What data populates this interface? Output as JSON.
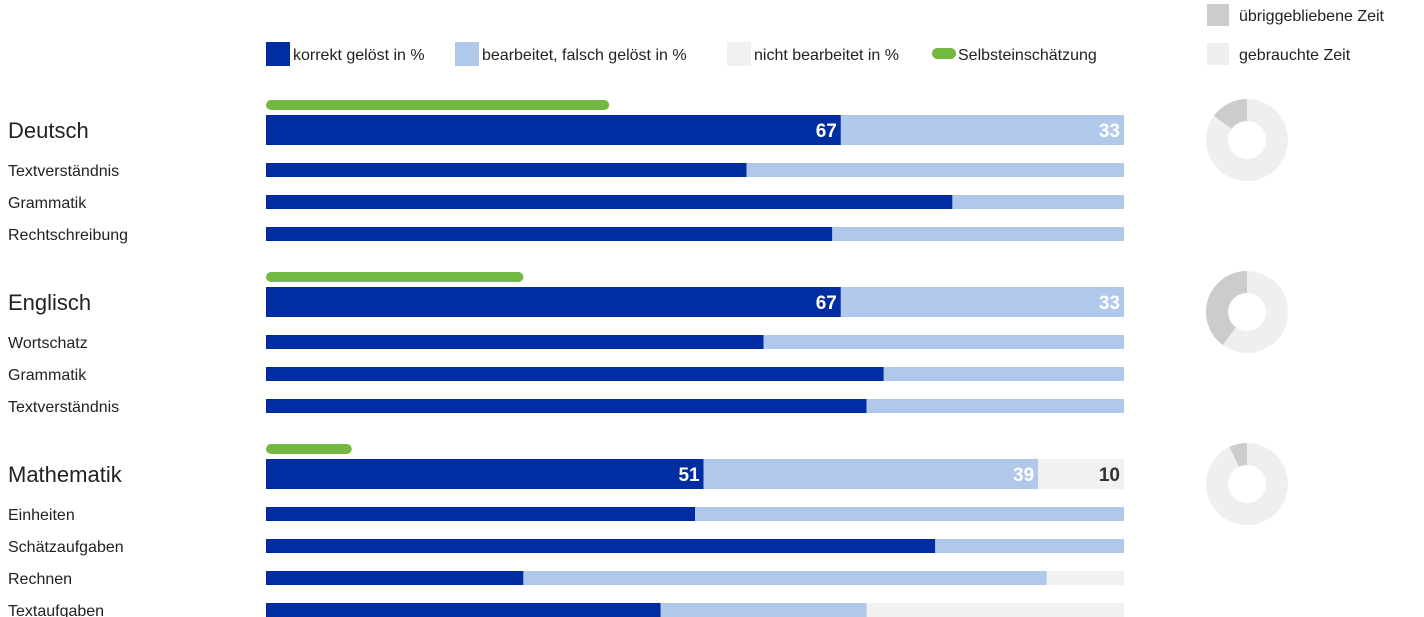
{
  "colors": {
    "correct": "#002da1",
    "wrong": "#b0c8ea",
    "unanswered": "#f1f1f1",
    "self": "#72b843",
    "time_remaining": "#cccccc",
    "time_used": "#efefef"
  },
  "legend": {
    "correct": "korrekt gelöst in %",
    "wrong": "bearbeitet, falsch gelöst in %",
    "unanswered": "nicht bearbeitet in %",
    "self": "Selbsteinschätzung"
  },
  "time_legend": {
    "remaining": "übriggebliebene Zeit",
    "used": "gebrauchte Zeit"
  },
  "chart_data": {
    "type": "bar",
    "orientation": "horizontal",
    "stacked": true,
    "xlim": [
      0,
      100
    ],
    "subjects": [
      {
        "name": "Deutsch",
        "self_assessment": 40,
        "correct": 67,
        "wrong": 33,
        "unanswered": 0,
        "time_remaining": 15,
        "subskills": [
          {
            "name": "Textverständnis",
            "correct": 56,
            "wrong": 44,
            "unanswered": 0
          },
          {
            "name": "Grammatik",
            "correct": 80,
            "wrong": 20,
            "unanswered": 0
          },
          {
            "name": "Rechtschreibung",
            "correct": 66,
            "wrong": 34,
            "unanswered": 0
          }
        ]
      },
      {
        "name": "Englisch",
        "self_assessment": 30,
        "correct": 67,
        "wrong": 33,
        "unanswered": 0,
        "time_remaining": 40,
        "subskills": [
          {
            "name": "Wortschatz",
            "correct": 58,
            "wrong": 42,
            "unanswered": 0
          },
          {
            "name": "Grammatik",
            "correct": 72,
            "wrong": 28,
            "unanswered": 0
          },
          {
            "name": "Textverständnis",
            "correct": 70,
            "wrong": 30,
            "unanswered": 0
          }
        ]
      },
      {
        "name": "Mathematik",
        "self_assessment": 10,
        "correct": 51,
        "wrong": 39,
        "unanswered": 10,
        "time_remaining": 7,
        "subskills": [
          {
            "name": "Einheiten",
            "correct": 50,
            "wrong": 50,
            "unanswered": 0
          },
          {
            "name": "Schätzaufgaben",
            "correct": 78,
            "wrong": 22,
            "unanswered": 0
          },
          {
            "name": "Rechnen",
            "correct": 30,
            "wrong": 61,
            "unanswered": 9
          },
          {
            "name": "Textaufgaben",
            "correct": 46,
            "wrong": 24,
            "unanswered": 30
          }
        ]
      }
    ]
  }
}
